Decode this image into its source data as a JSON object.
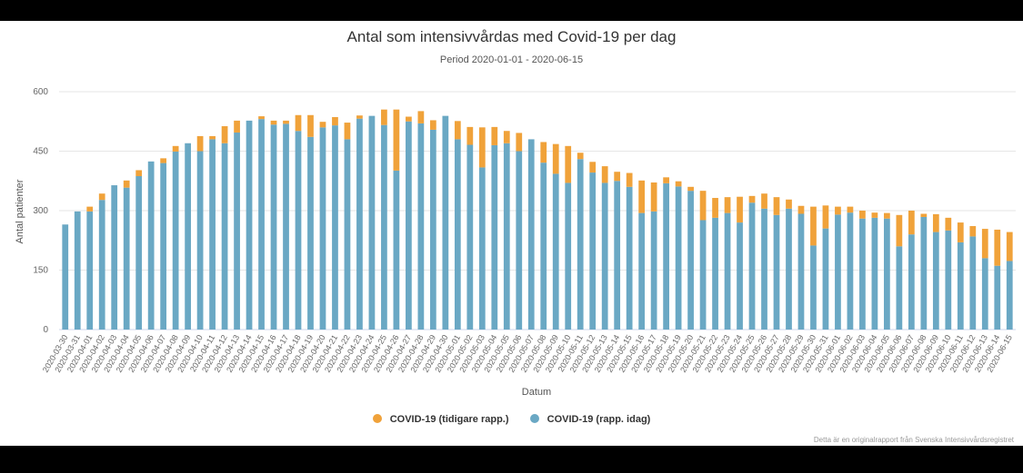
{
  "chart_data": {
    "type": "bar",
    "stacked": true,
    "title": "Antal som intensivvårdas med Covid-19 per dag",
    "subtitle": "Period 2020-01-01 - 2020-06-15",
    "xlabel": "Datum",
    "ylabel": "Antal patienter",
    "ylim": [
      0,
      600
    ],
    "yticks": [
      0,
      150,
      300,
      450,
      600
    ],
    "grid": true,
    "legend_position": "bottom",
    "categories": [
      "2020-03-30",
      "2020-03-31",
      "2020-04-01",
      "2020-04-02",
      "2020-04-03",
      "2020-04-04",
      "2020-04-05",
      "2020-04-06",
      "2020-04-07",
      "2020-04-08",
      "2020-04-09",
      "2020-04-10",
      "2020-04-11",
      "2020-04-12",
      "2020-04-13",
      "2020-04-14",
      "2020-04-15",
      "2020-04-16",
      "2020-04-17",
      "2020-04-18",
      "2020-04-19",
      "2020-04-20",
      "2020-04-21",
      "2020-04-22",
      "2020-04-23",
      "2020-04-24",
      "2020-04-25",
      "2020-04-26",
      "2020-04-27",
      "2020-04-28",
      "2020-04-29",
      "2020-04-30",
      "2020-05-01",
      "2020-05-02",
      "2020-05-03",
      "2020-05-04",
      "2020-05-05",
      "2020-05-06",
      "2020-05-07",
      "2020-05-08",
      "2020-05-09",
      "2020-05-10",
      "2020-05-11",
      "2020-05-12",
      "2020-05-13",
      "2020-05-14",
      "2020-05-15",
      "2020-05-16",
      "2020-05-17",
      "2020-05-18",
      "2020-05-19",
      "2020-05-20",
      "2020-05-21",
      "2020-05-22",
      "2020-05-23",
      "2020-05-24",
      "2020-05-25",
      "2020-05-26",
      "2020-05-27",
      "2020-05-28",
      "2020-05-29",
      "2020-05-30",
      "2020-05-31",
      "2020-06-01",
      "2020-06-02",
      "2020-06-03",
      "2020-06-04",
      "2020-06-05",
      "2020-06-06",
      "2020-06-07",
      "2020-06-08",
      "2020-06-09",
      "2020-06-10",
      "2020-06-11",
      "2020-06-12",
      "2020-06-13",
      "2020-06-14",
      "2020-06-15"
    ],
    "series": [
      {
        "name": "COVID-19 (rapp. idag)",
        "color": "#6aa8c4",
        "values": [
          265,
          298,
          298,
          327,
          364,
          358,
          387,
          424,
          420,
          449,
          470,
          450,
          480,
          470,
          497,
          527,
          531,
          517,
          519,
          501,
          486,
          510,
          515,
          480,
          532,
          539,
          516,
          401,
          525,
          520,
          504,
          539,
          480,
          466,
          409,
          465,
          470,
          450,
          480,
          421,
          393,
          370,
          430,
          396,
          370,
          375,
          360,
          294,
          298,
          369,
          361,
          350,
          276,
          282,
          294,
          270,
          320,
          305,
          289,
          305,
          292,
          212,
          255,
          290,
          295,
          280,
          282,
          280,
          210,
          240,
          284,
          246,
          250,
          220,
          235,
          180,
          161,
          173
        ]
      },
      {
        "name": "COVID-19 (tidigare rapp.)",
        "color": "#f0a23a",
        "values": [
          0,
          0,
          12,
          16,
          0,
          18,
          15,
          0,
          12,
          14,
          0,
          38,
          8,
          43,
          30,
          0,
          7,
          10,
          8,
          40,
          55,
          14,
          21,
          42,
          8,
          0,
          39,
          154,
          12,
          31,
          24,
          0,
          46,
          45,
          101,
          46,
          31,
          46,
          0,
          52,
          75,
          93,
          16,
          27,
          42,
          23,
          35,
          82,
          73,
          15,
          13,
          10,
          74,
          50,
          40,
          65,
          17,
          38,
          45,
          23,
          20,
          98,
          58,
          20,
          15,
          20,
          13,
          14,
          79,
          60,
          8,
          45,
          32,
          50,
          26,
          74,
          91,
          73
        ]
      }
    ]
  },
  "credits": "Detta är en originalrapport från Svenska Intensivvårdsregistret"
}
